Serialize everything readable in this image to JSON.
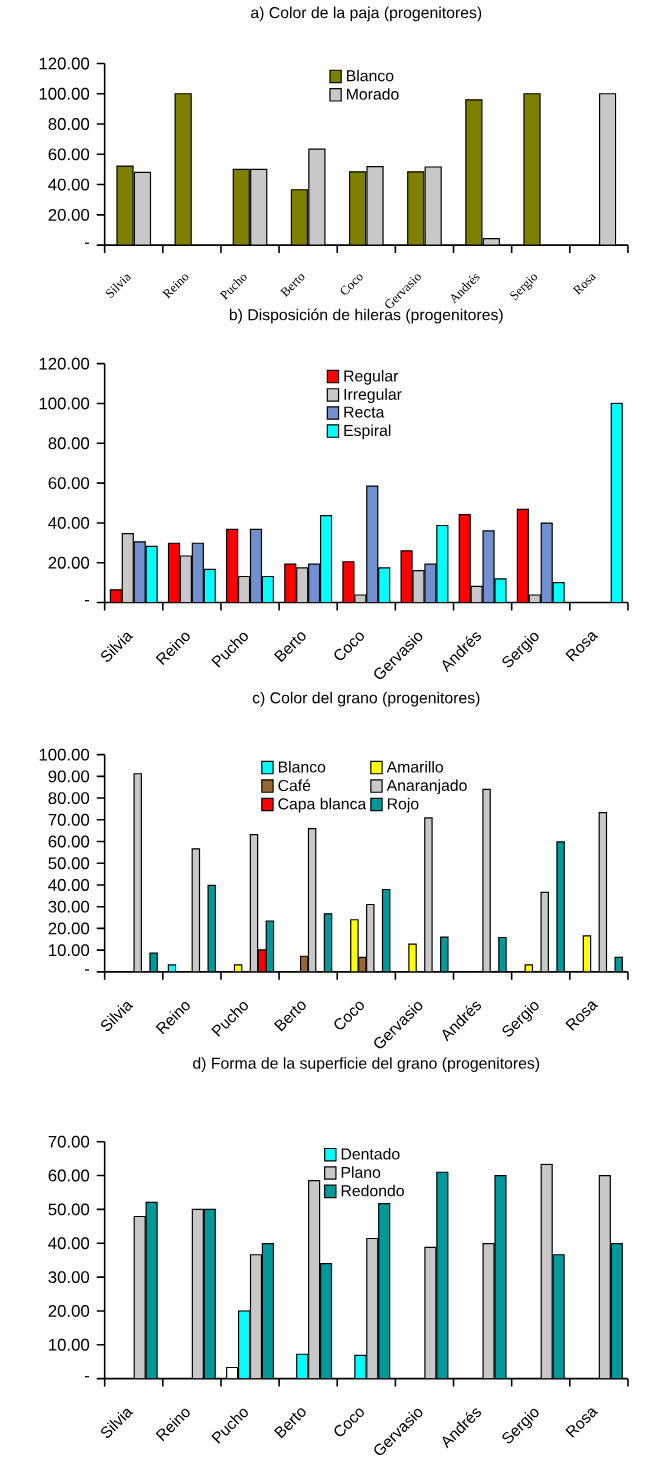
{
  "chart_data": [
    {
      "type": "bar",
      "title": "a) Color de la paja (progenitores)",
      "categories": [
        "Silvia",
        "Reino",
        "Pucho",
        "Berto",
        "Coco",
        "Gervasio",
        "Andrés",
        "Sergio",
        "Rosa"
      ],
      "series": [
        {
          "name": "Blanco",
          "color": "#808000",
          "values": [
            52.2,
            100,
            50,
            36.6,
            48.4,
            48.4,
            96.0,
            100,
            null
          ]
        },
        {
          "name": "Morado",
          "color": "#c8c8c8",
          "values": [
            48.1,
            null,
            50,
            63.4,
            51.9,
            51.6,
            4.3,
            null,
            100
          ]
        }
      ],
      "ylim": [
        0,
        120
      ],
      "yticks": [
        {
          "value": 0,
          "label": "-"
        },
        {
          "value": 20,
          "label": "20.00"
        },
        {
          "value": 40,
          "label": "40.00"
        },
        {
          "value": 60,
          "label": "60.00"
        },
        {
          "value": 80,
          "label": "80.00"
        },
        {
          "value": 100,
          "label": "100.00"
        },
        {
          "value": 120,
          "label": "120.00"
        }
      ],
      "legend": "top"
    },
    {
      "type": "bar",
      "title": "b) Disposición de hileras (progenitores)",
      "categories": [
        "Silvia",
        "Reino",
        "Pucho",
        "Berto",
        "Coco",
        "Gervasio",
        "Andrés",
        "Sergio",
        "Rosa"
      ],
      "series": [
        {
          "name": "Regular",
          "color": "#ff0000",
          "values": [
            6.4,
            29.8,
            36.8,
            19.3,
            20.5,
            26.0,
            44.2,
            46.8,
            null
          ]
        },
        {
          "name": "Irregular",
          "color": "#c8c8c8",
          "values": [
            34.6,
            23.4,
            13.1,
            17.4,
            3.8,
            16.0,
            8.1,
            3.8,
            null
          ]
        },
        {
          "name": "Recta",
          "color": "#7090d0",
          "values": [
            30.5,
            29.8,
            36.8,
            19.3,
            58.5,
            19.3,
            36.0,
            39.9,
            null
          ]
        },
        {
          "name": "Espiral",
          "color": "#00ffff",
          "values": [
            28.2,
            16.7,
            13.1,
            43.7,
            17.4,
            38.7,
            11.9,
            10.0,
            100
          ]
        }
      ],
      "ylim": [
        0,
        120
      ],
      "yticks": [
        {
          "value": 0,
          "label": "-"
        },
        {
          "value": 20,
          "label": "20.00"
        },
        {
          "value": 40,
          "label": "40.00"
        },
        {
          "value": 60,
          "label": "60.00"
        },
        {
          "value": 80,
          "label": "80.00"
        },
        {
          "value": 100,
          "label": "100.00"
        },
        {
          "value": 120,
          "label": "120.00"
        }
      ],
      "legend": "top"
    },
    {
      "type": "bar",
      "title": "c) Color del grano (progenitores)",
      "categories": [
        "Silvia",
        "Reino",
        "Pucho",
        "Berto",
        "Coco",
        "Gervasio",
        "Andrés",
        "Sergio",
        "Rosa"
      ],
      "series": [
        {
          "name": "Blanco",
          "color": "#00ffff",
          "values": [
            null,
            3.2,
            null,
            null,
            null,
            null,
            null,
            null,
            null
          ]
        },
        {
          "name": "Amarillo",
          "color": "#ffff00",
          "values": [
            null,
            null,
            3.2,
            null,
            24.0,
            12.8,
            null,
            3.2,
            16.6
          ]
        },
        {
          "name": "Café",
          "color": "#996633",
          "values": [
            null,
            null,
            null,
            7.2,
            6.7,
            null,
            null,
            null,
            null
          ]
        },
        {
          "name": "Anaranjado",
          "color": "#c8c8c8",
          "values": [
            91.2,
            56.6,
            63.2,
            65.9,
            31.0,
            70.9,
            84.0,
            36.6,
            73.3
          ]
        },
        {
          "name": "Capa blanca",
          "color": "#ff0000",
          "values": [
            null,
            null,
            10.1,
            null,
            null,
            null,
            null,
            null,
            null
          ]
        },
        {
          "name": "Rojo",
          "color": "#009999",
          "values": [
            8.6,
            39.8,
            23.4,
            26.7,
            37.9,
            16.0,
            15.8,
            59.8,
            6.7
          ]
        }
      ],
      "ylim": [
        0,
        100
      ],
      "yticks": [
        {
          "value": 0,
          "label": "-"
        },
        {
          "value": 10,
          "label": "10.00"
        },
        {
          "value": 20,
          "label": "20.00"
        },
        {
          "value": 30,
          "label": "30.00"
        },
        {
          "value": 40,
          "label": "40.00"
        },
        {
          "value": 50,
          "label": "50.00"
        },
        {
          "value": 60,
          "label": "60.00"
        },
        {
          "value": 70,
          "label": "70.00"
        },
        {
          "value": 80,
          "label": "80.00"
        },
        {
          "value": 90,
          "label": "90.00"
        },
        {
          "value": 100,
          "label": "100.00"
        }
      ],
      "legend": "top"
    },
    {
      "type": "bar",
      "title": "d) Forma de la superficie del grano (progenitores)",
      "categories": [
        "Silvia",
        "Reino",
        "Pucho",
        "Berto",
        "Coco",
        "Gervasio",
        "Andrés",
        "Sergio",
        "Rosa"
      ],
      "series": [
        {
          "color": "#ffffff",
          "values": [
            null,
            null,
            3.3,
            null,
            null,
            null,
            null,
            null,
            null
          ]
        },
        {
          "name": "Dentado",
          "color": "#00ffff",
          "values": [
            null,
            null,
            20.0,
            7.2,
            6.9,
            null,
            null,
            null,
            null
          ]
        },
        {
          "name": "Plano",
          "color": "#c8c8c8",
          "values": [
            47.9,
            50,
            36.6,
            58.5,
            41.4,
            38.8,
            39.9,
            63.3,
            60.0
          ]
        },
        {
          "name": "Redondo",
          "color": "#009999",
          "values": [
            52.1,
            50,
            39.9,
            34.0,
            51.7,
            61.0,
            60.0,
            36.6,
            39.9
          ]
        }
      ],
      "ylim": [
        0,
        70
      ],
      "yticks": [
        {
          "value": 0,
          "label": "-"
        },
        {
          "value": 10,
          "label": "10.00"
        },
        {
          "value": 20,
          "label": "20.00"
        },
        {
          "value": 30,
          "label": "30.00"
        },
        {
          "value": 40,
          "label": "40.00"
        },
        {
          "value": 50,
          "label": "50.00"
        },
        {
          "value": 60,
          "label": "60.00"
        },
        {
          "value": 70,
          "label": "70.00"
        }
      ],
      "legend": "top"
    }
  ]
}
